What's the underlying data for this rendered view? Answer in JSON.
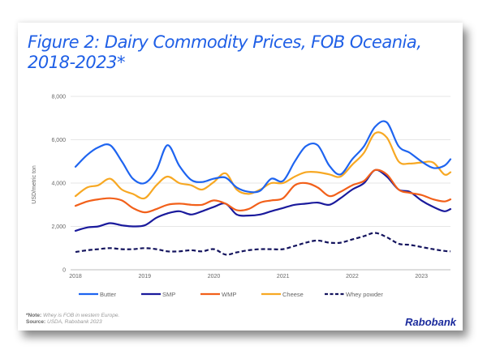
{
  "figure": {
    "title": "Figure 2: Dairy Commodity Prices, FOB Oceania, 2018-2023*",
    "note_label": "*Note:",
    "note_text": "Whey is FOB in western Europe.",
    "source_label": "Source:",
    "source_text": "USDA, Rabobank 2023",
    "brand": "Rabobank",
    "title_color": "#1f5fe6"
  },
  "chart_data": {
    "type": "line",
    "title": "Figure 2: Dairy Commodity Prices, FOB Oceania, 2018-2023*",
    "xlabel": "",
    "ylabel": "USD/metric ton",
    "ylim": [
      0,
      8000
    ],
    "yticks": [
      0,
      2000,
      4000,
      6000,
      8000
    ],
    "ytick_labels": [
      "0",
      "2,000",
      "4,000",
      "6,000",
      "8,000"
    ],
    "xlim": [
      2018.0,
      2023.42
    ],
    "xticks": [
      2018,
      2019,
      2020,
      2021,
      2022,
      2023
    ],
    "xtick_labels": [
      "2018",
      "2019",
      "2020",
      "2021",
      "2022",
      "2023"
    ],
    "grid": "horizontal",
    "legend_position": "bottom",
    "x": [
      2018.0,
      2018.17,
      2018.33,
      2018.5,
      2018.67,
      2018.83,
      2019.0,
      2019.17,
      2019.33,
      2019.5,
      2019.67,
      2019.83,
      2020.0,
      2020.17,
      2020.33,
      2020.5,
      2020.67,
      2020.83,
      2021.0,
      2021.17,
      2021.33,
      2021.5,
      2021.67,
      2021.83,
      2022.0,
      2022.17,
      2022.33,
      2022.5,
      2022.67,
      2022.83,
      2023.0,
      2023.17,
      2023.33,
      2023.42
    ],
    "series": [
      {
        "name": "Butter",
        "color": "#1e64f0",
        "dash": false,
        "values": [
          4750,
          5300,
          5650,
          5750,
          5000,
          4200,
          4000,
          4600,
          5750,
          4800,
          4150,
          4050,
          4200,
          4250,
          3800,
          3600,
          3650,
          4200,
          4100,
          5000,
          5700,
          5750,
          4800,
          4400,
          5100,
          5700,
          6600,
          6800,
          5700,
          5400,
          5000,
          4700,
          4800,
          5100
        ]
      },
      {
        "name": "SMP",
        "color": "#1a1a9c",
        "dash": false,
        "values": [
          1800,
          1950,
          2000,
          2150,
          2050,
          2000,
          2050,
          2400,
          2600,
          2700,
          2550,
          2700,
          2900,
          3050,
          2550,
          2500,
          2550,
          2700,
          2850,
          3000,
          3050,
          3100,
          3000,
          3300,
          3700,
          4000,
          4600,
          4300,
          3700,
          3600,
          3200,
          2900,
          2700,
          2800
        ]
      },
      {
        "name": "WMP",
        "color": "#f2601a",
        "dash": false,
        "values": [
          2950,
          3150,
          3250,
          3300,
          3200,
          2850,
          2650,
          2800,
          3000,
          3050,
          3000,
          3000,
          3200,
          3050,
          2750,
          2800,
          3100,
          3200,
          3300,
          3900,
          4000,
          3800,
          3400,
          3600,
          3900,
          4100,
          4600,
          4400,
          3700,
          3550,
          3450,
          3250,
          3150,
          3250
        ]
      },
      {
        "name": "Cheese",
        "color": "#f7a823",
        "dash": false,
        "values": [
          3400,
          3800,
          3900,
          4200,
          3700,
          3500,
          3300,
          3900,
          4300,
          4000,
          3900,
          3700,
          4050,
          4450,
          3700,
          3500,
          3700,
          4000,
          4000,
          4300,
          4500,
          4500,
          4400,
          4300,
          4850,
          5400,
          6300,
          6100,
          5000,
          4900,
          4950,
          4950,
          4400,
          4500
        ]
      },
      {
        "name": "Whey powder",
        "color": "#14145e",
        "dash": true,
        "values": [
          820,
          900,
          950,
          1000,
          950,
          950,
          1000,
          950,
          850,
          850,
          900,
          850,
          950,
          700,
          800,
          900,
          950,
          950,
          950,
          1100,
          1250,
          1350,
          1250,
          1250,
          1400,
          1550,
          1700,
          1500,
          1200,
          1150,
          1050,
          950,
          870,
          850
        ]
      }
    ]
  }
}
